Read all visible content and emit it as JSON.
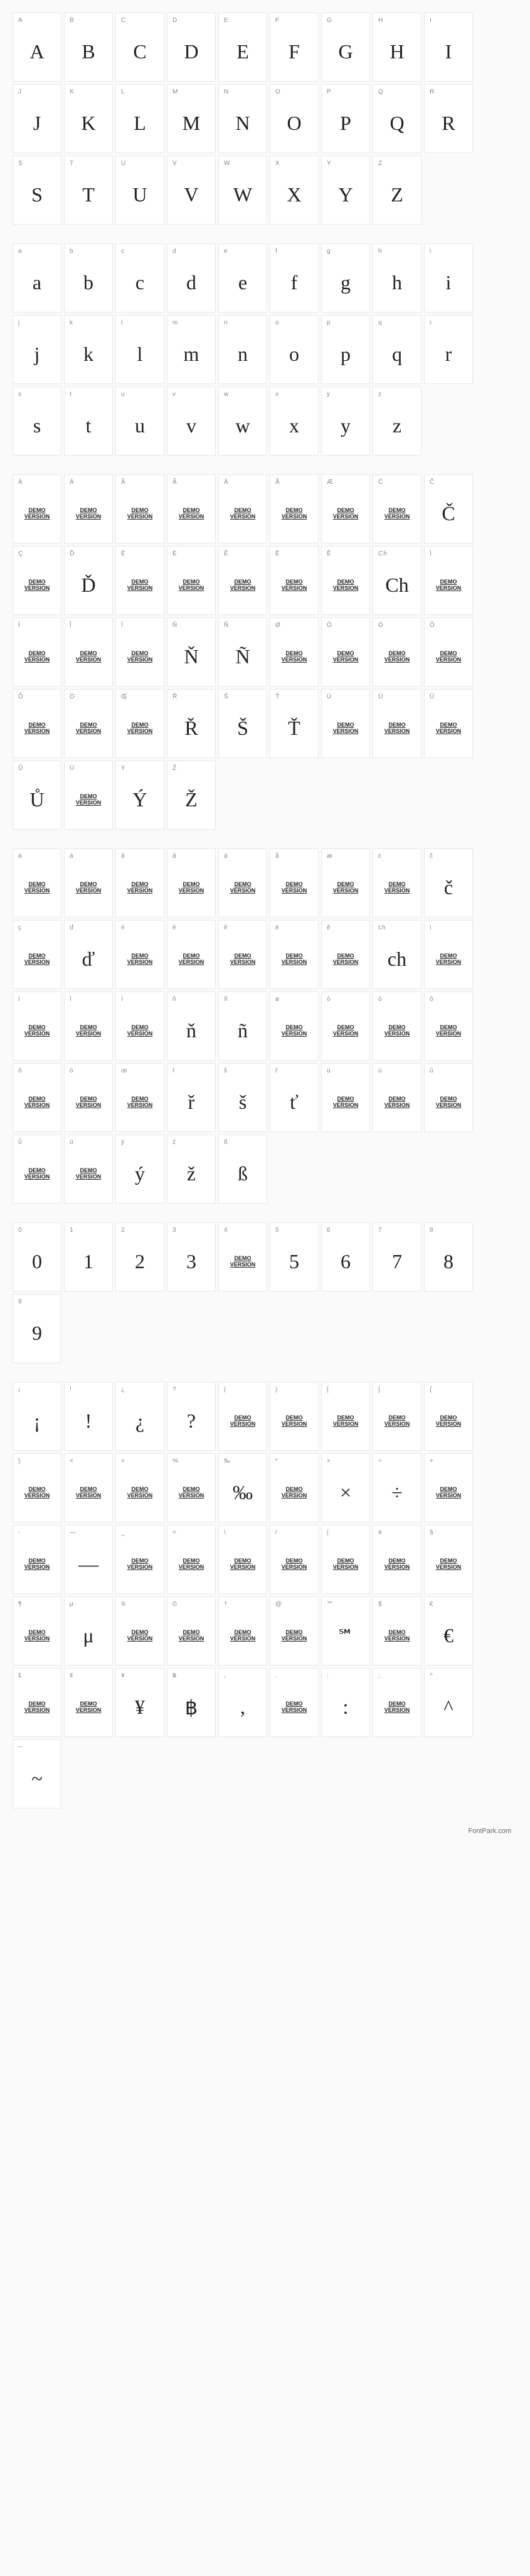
{
  "demo_text": "DEMO VERSION",
  "footer": "FontPark.com",
  "cell_bg": "#ffffff",
  "cell_border": "#e8e8e8",
  "label_color": "#888888",
  "glyph_color": "#222222",
  "sections": [
    {
      "id": "upper",
      "cells": [
        {
          "label": "A",
          "glyph": "A"
        },
        {
          "label": "B",
          "glyph": "B"
        },
        {
          "label": "C",
          "glyph": "C"
        },
        {
          "label": "D",
          "glyph": "D"
        },
        {
          "label": "E",
          "glyph": "E"
        },
        {
          "label": "F",
          "glyph": "F"
        },
        {
          "label": "G",
          "glyph": "G"
        },
        {
          "label": "H",
          "glyph": "H"
        },
        {
          "label": "I",
          "glyph": "I"
        },
        {
          "label": "J",
          "glyph": "J"
        },
        {
          "label": "K",
          "glyph": "K"
        },
        {
          "label": "L",
          "glyph": "L"
        },
        {
          "label": "M",
          "glyph": "M"
        },
        {
          "label": "N",
          "glyph": "N"
        },
        {
          "label": "O",
          "glyph": "O"
        },
        {
          "label": "P",
          "glyph": "P"
        },
        {
          "label": "Q",
          "glyph": "Q"
        },
        {
          "label": "R",
          "glyph": "R"
        },
        {
          "label": "S",
          "glyph": "S"
        },
        {
          "label": "T",
          "glyph": "T"
        },
        {
          "label": "U",
          "glyph": "U"
        },
        {
          "label": "V",
          "glyph": "V"
        },
        {
          "label": "W",
          "glyph": "W"
        },
        {
          "label": "X",
          "glyph": "X"
        },
        {
          "label": "Y",
          "glyph": "Y"
        },
        {
          "label": "Z",
          "glyph": "Z"
        }
      ]
    },
    {
      "id": "lower",
      "cells": [
        {
          "label": "a",
          "glyph": "a"
        },
        {
          "label": "b",
          "glyph": "b"
        },
        {
          "label": "c",
          "glyph": "c"
        },
        {
          "label": "d",
          "glyph": "d"
        },
        {
          "label": "e",
          "glyph": "e"
        },
        {
          "label": "f",
          "glyph": "f"
        },
        {
          "label": "g",
          "glyph": "g"
        },
        {
          "label": "h",
          "glyph": "h"
        },
        {
          "label": "i",
          "glyph": "i"
        },
        {
          "label": "j",
          "glyph": "j"
        },
        {
          "label": "k",
          "glyph": "k"
        },
        {
          "label": "l",
          "glyph": "l"
        },
        {
          "label": "m",
          "glyph": "m"
        },
        {
          "label": "n",
          "glyph": "n"
        },
        {
          "label": "o",
          "glyph": "o"
        },
        {
          "label": "p",
          "glyph": "p"
        },
        {
          "label": "q",
          "glyph": "q"
        },
        {
          "label": "r",
          "glyph": "r"
        },
        {
          "label": "s",
          "glyph": "s"
        },
        {
          "label": "t",
          "glyph": "t"
        },
        {
          "label": "u",
          "glyph": "u"
        },
        {
          "label": "v",
          "glyph": "v"
        },
        {
          "label": "w",
          "glyph": "w"
        },
        {
          "label": "x",
          "glyph": "x"
        },
        {
          "label": "y",
          "glyph": "y"
        },
        {
          "label": "z",
          "glyph": "z"
        }
      ]
    },
    {
      "id": "upper-ext",
      "cells": [
        {
          "label": "À",
          "demo": true
        },
        {
          "label": "Á",
          "demo": true
        },
        {
          "label": "Â",
          "demo": true
        },
        {
          "label": "Ã",
          "demo": true
        },
        {
          "label": "Ä",
          "demo": true
        },
        {
          "label": "Å",
          "demo": true
        },
        {
          "label": "Æ",
          "demo": true
        },
        {
          "label": "Ć",
          "demo": true
        },
        {
          "label": "Č",
          "glyph": "Č"
        },
        {
          "label": "Ç",
          "demo": true
        },
        {
          "label": "Ď",
          "glyph": "Ď"
        },
        {
          "label": "È",
          "demo": true
        },
        {
          "label": "É",
          "demo": true
        },
        {
          "label": "Ê",
          "demo": true
        },
        {
          "label": "Ë",
          "demo": true
        },
        {
          "label": "Ě",
          "demo": true
        },
        {
          "label": "Ch",
          "glyph": "Ch"
        },
        {
          "label": "Ì",
          "demo": true
        },
        {
          "label": "Í",
          "demo": true
        },
        {
          "label": "Î",
          "demo": true
        },
        {
          "label": "Ï",
          "demo": true
        },
        {
          "label": "Ň",
          "glyph": "Ň"
        },
        {
          "label": "Ñ",
          "glyph": "Ñ"
        },
        {
          "label": "Ø",
          "demo": true
        },
        {
          "label": "Ò",
          "demo": true
        },
        {
          "label": "Ó",
          "demo": true
        },
        {
          "label": "Ô",
          "demo": true
        },
        {
          "label": "Õ",
          "demo": true
        },
        {
          "label": "Ö",
          "demo": true
        },
        {
          "label": "Œ",
          "demo": true
        },
        {
          "label": "Ř",
          "glyph": "Ř"
        },
        {
          "label": "Š",
          "glyph": "Š"
        },
        {
          "label": "Ť",
          "glyph": "Ť"
        },
        {
          "label": "Ù",
          "demo": true
        },
        {
          "label": "Ú",
          "demo": true
        },
        {
          "label": "Û",
          "demo": true
        },
        {
          "label": "Ů",
          "glyph": "Ů"
        },
        {
          "label": "Ü",
          "demo": true
        },
        {
          "label": "Ý",
          "glyph": "Ý"
        },
        {
          "label": "Ž",
          "glyph": "Ž"
        }
      ]
    },
    {
      "id": "lower-ext",
      "cells": [
        {
          "label": "à",
          "demo": true
        },
        {
          "label": "á",
          "demo": true
        },
        {
          "label": "â",
          "demo": true
        },
        {
          "label": "ã",
          "demo": true
        },
        {
          "label": "ä",
          "demo": true
        },
        {
          "label": "å",
          "demo": true
        },
        {
          "label": "æ",
          "demo": true
        },
        {
          "label": "ć",
          "demo": true
        },
        {
          "label": "č",
          "glyph": "č"
        },
        {
          "label": "ç",
          "demo": true
        },
        {
          "label": "ď",
          "glyph": "ď"
        },
        {
          "label": "è",
          "demo": true
        },
        {
          "label": "é",
          "demo": true
        },
        {
          "label": "ê",
          "demo": true
        },
        {
          "label": "ë",
          "demo": true
        },
        {
          "label": "ě",
          "demo": true
        },
        {
          "label": "ch",
          "glyph": "ch"
        },
        {
          "label": "ì",
          "demo": true
        },
        {
          "label": "í",
          "demo": true
        },
        {
          "label": "î",
          "demo": true
        },
        {
          "label": "ï",
          "demo": true
        },
        {
          "label": "ň",
          "glyph": "ň"
        },
        {
          "label": "ñ",
          "glyph": "ñ"
        },
        {
          "label": "ø",
          "demo": true
        },
        {
          "label": "ò",
          "demo": true
        },
        {
          "label": "ó",
          "demo": true
        },
        {
          "label": "ô",
          "demo": true
        },
        {
          "label": "õ",
          "demo": true
        },
        {
          "label": "ö",
          "demo": true
        },
        {
          "label": "œ",
          "demo": true
        },
        {
          "label": "ř",
          "glyph": "ř"
        },
        {
          "label": "š",
          "glyph": "š"
        },
        {
          "label": "ť",
          "glyph": "ť"
        },
        {
          "label": "ù",
          "demo": true
        },
        {
          "label": "ú",
          "demo": true
        },
        {
          "label": "û",
          "demo": true
        },
        {
          "label": "ů",
          "demo": true
        },
        {
          "label": "ü",
          "demo": true
        },
        {
          "label": "ý",
          "glyph": "ý"
        },
        {
          "label": "ž",
          "glyph": "ž"
        },
        {
          "label": "ß",
          "glyph": "ß"
        }
      ]
    },
    {
      "id": "digits",
      "cells": [
        {
          "label": "0",
          "glyph": "0"
        },
        {
          "label": "1",
          "glyph": "1"
        },
        {
          "label": "2",
          "glyph": "2"
        },
        {
          "label": "3",
          "glyph": "3"
        },
        {
          "label": "4",
          "demo": true
        },
        {
          "label": "5",
          "glyph": "5"
        },
        {
          "label": "6",
          "glyph": "6"
        },
        {
          "label": "7",
          "glyph": "7"
        },
        {
          "label": "8",
          "glyph": "8"
        },
        {
          "label": "9",
          "glyph": "9"
        }
      ]
    },
    {
      "id": "punct",
      "cells": [
        {
          "label": "¡",
          "glyph": "¡"
        },
        {
          "label": "!",
          "glyph": "!"
        },
        {
          "label": "¿",
          "glyph": "¿"
        },
        {
          "label": "?",
          "glyph": "?"
        },
        {
          "label": "(",
          "demo": true
        },
        {
          "label": ")",
          "demo": true
        },
        {
          "label": "[",
          "demo": true
        },
        {
          "label": "]",
          "demo": true
        },
        {
          "label": "{",
          "demo": true
        },
        {
          "label": "}",
          "demo": true
        },
        {
          "label": "<",
          "demo": true
        },
        {
          "label": ">",
          "demo": true
        },
        {
          "label": "%",
          "demo": true
        },
        {
          "label": "‰",
          "glyph": "‰"
        },
        {
          "label": "*",
          "demo": true
        },
        {
          "label": "×",
          "glyph": "×"
        },
        {
          "label": "÷",
          "glyph": "÷"
        },
        {
          "label": "+",
          "demo": true
        },
        {
          "label": "-",
          "demo": true
        },
        {
          "label": "—",
          "glyph": "—"
        },
        {
          "label": "_",
          "demo": true
        },
        {
          "label": "=",
          "demo": true
        },
        {
          "label": "\\",
          "demo": true
        },
        {
          "label": "/",
          "demo": true
        },
        {
          "label": "|",
          "demo": true
        },
        {
          "label": "#",
          "demo": true
        },
        {
          "label": "§",
          "demo": true
        },
        {
          "label": "¶",
          "demo": true
        },
        {
          "label": "μ",
          "glyph": "μ"
        },
        {
          "label": "®",
          "demo": true
        },
        {
          "label": "©",
          "demo": true
        },
        {
          "label": "†",
          "demo": true
        },
        {
          "label": "@",
          "demo": true
        },
        {
          "label": "℠",
          "glyph": "℠",
          "sm": true
        },
        {
          "label": "$",
          "demo": true
        },
        {
          "label": "€",
          "glyph": "€"
        },
        {
          "label": "£",
          "demo": true
        },
        {
          "label": "¢",
          "demo": true
        },
        {
          "label": "¥",
          "glyph": "¥"
        },
        {
          "label": "฿",
          "glyph": "฿"
        },
        {
          "label": ",",
          "glyph": ","
        },
        {
          "label": ".",
          "demo": true
        },
        {
          "label": ":",
          "glyph": ":"
        },
        {
          "label": ";",
          "demo": true
        },
        {
          "label": "^",
          "glyph": "^"
        },
        {
          "label": "~",
          "glyph": "~"
        }
      ]
    }
  ]
}
